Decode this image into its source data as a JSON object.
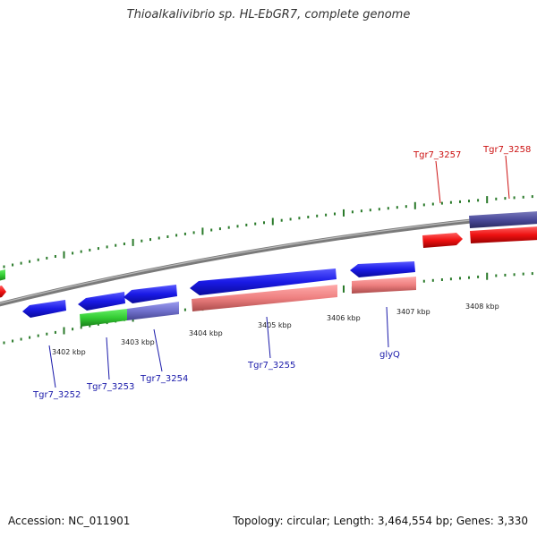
{
  "title": "Thioalkalivibrio sp. HL-EbGR7, complete genome",
  "footer": {
    "accession": "Accession: NC_011901",
    "summary": "Topology: circular; Length: 3,464,554 bp; Genes: 3,330"
  },
  "colors": {
    "backbone": "#888888",
    "ticks": "#2a7a2a",
    "label_blue": "#1a1aaa",
    "label_red": "#cc1111",
    "gene_blue": "#1a1ae6",
    "gene_red": "#ee1111",
    "gene_green": "#33cc33",
    "gene_purple": "#7070cc",
    "gene_pink": "#ee8080",
    "gene_navy": "#4a4a9a"
  },
  "kbp_labels": [
    "3402 kbp",
    "3403 kbp",
    "3404 kbp",
    "3405 kbp",
    "3406 kbp",
    "3407 kbp",
    "3408 kbp"
  ],
  "gene_labels": [
    {
      "text": "Tgr7_3252",
      "color": "blue"
    },
    {
      "text": "Tgr7_3253",
      "color": "blue"
    },
    {
      "text": "Tgr7_3254",
      "color": "blue"
    },
    {
      "text": "Tgr7_3255",
      "color": "blue"
    },
    {
      "text": "glyQ",
      "color": "blue"
    },
    {
      "text": "Tgr7_3257",
      "color": "red"
    },
    {
      "text": "Tgr7_3258",
      "color": "red"
    }
  ]
}
